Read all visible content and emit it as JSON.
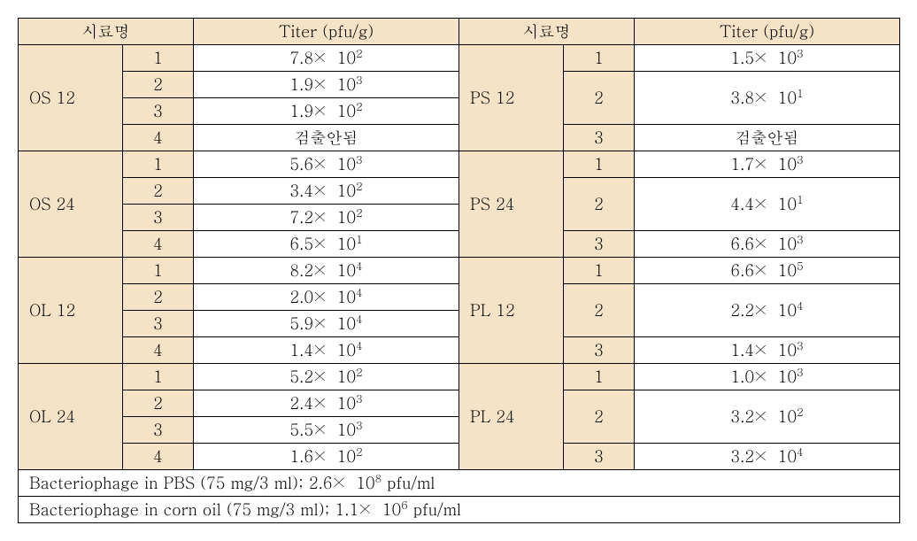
{
  "headers": {
    "sample": "시료명",
    "titer": "Titer (pfu/g)"
  },
  "groups_left": [
    {
      "name": "OS 12",
      "rows": [
        {
          "idx": "1",
          "base": "7.8",
          "exp": "2"
        },
        {
          "idx": "2",
          "base": "1.9",
          "exp": "3"
        },
        {
          "idx": "3",
          "base": "1.9",
          "exp": "2"
        },
        {
          "idx": "4",
          "text": "검출안됨"
        }
      ]
    },
    {
      "name": "OS 24",
      "rows": [
        {
          "idx": "1",
          "base": "5.6",
          "exp": "3"
        },
        {
          "idx": "2",
          "base": "3.4",
          "exp": "2"
        },
        {
          "idx": "3",
          "base": "7.2",
          "exp": "2"
        },
        {
          "idx": "4",
          "base": "6.5",
          "exp": "1"
        }
      ]
    },
    {
      "name": "OL 12",
      "rows": [
        {
          "idx": "1",
          "base": "8.2",
          "exp": "4"
        },
        {
          "idx": "2",
          "base": "2.0",
          "exp": "4"
        },
        {
          "idx": "3",
          "base": "5.9",
          "exp": "4"
        },
        {
          "idx": "4",
          "base": "1.4",
          "exp": "4"
        }
      ]
    },
    {
      "name": "OL 24",
      "rows": [
        {
          "idx": "1",
          "base": "5.2",
          "exp": "2"
        },
        {
          "idx": "2",
          "base": "2.4",
          "exp": "3"
        },
        {
          "idx": "3",
          "base": "5.5",
          "exp": "3"
        },
        {
          "idx": "4",
          "base": "1.6",
          "exp": "2"
        }
      ]
    }
  ],
  "groups_right": [
    {
      "name": "PS 12",
      "rows": [
        {
          "idx": "1",
          "base": "1.5",
          "exp": "3"
        },
        {
          "idx": "2",
          "base": "3.8",
          "exp": "1"
        },
        {
          "idx": "3",
          "text": "검출안됨"
        }
      ]
    },
    {
      "name": "PS 24",
      "rows": [
        {
          "idx": "1",
          "base": "1.7",
          "exp": "3"
        },
        {
          "idx": "2",
          "base": "4.4",
          "exp": "1"
        },
        {
          "idx": "3",
          "base": "6.6",
          "exp": "3"
        }
      ]
    },
    {
      "name": "PL 12",
      "rows": [
        {
          "idx": "1",
          "base": "6.6",
          "exp": "5"
        },
        {
          "idx": "2",
          "base": "2.2",
          "exp": "4"
        },
        {
          "idx": "3",
          "base": "1.4",
          "exp": "3"
        }
      ]
    },
    {
      "name": "PL 24",
      "rows": [
        {
          "idx": "1",
          "base": "1.0",
          "exp": "3"
        },
        {
          "idx": "2",
          "base": "3.2",
          "exp": "2"
        },
        {
          "idx": "3",
          "base": "3.2",
          "exp": "4"
        }
      ]
    }
  ],
  "footer": [
    {
      "prefix": "Bacteriophage in PBS (75 mg/3 ml); ",
      "base": "2.6",
      "exp": "8",
      "suffix": " pfu/ml"
    },
    {
      "prefix": "Bacteriophage in corn oil (75 mg/3 ml); ",
      "base": "1.1",
      "exp": "6",
      "suffix": " pfu/ml"
    }
  ]
}
